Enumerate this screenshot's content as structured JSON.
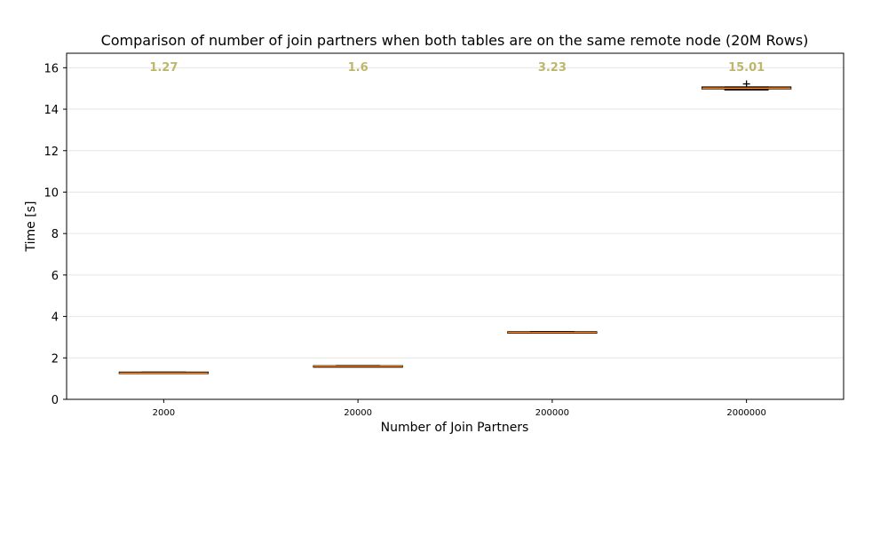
{
  "chart_data": {
    "type": "box",
    "title": "Comparison of number of join partners when both tables are on the same remote node (20M Rows)",
    "xlabel": "Number of Join Partners",
    "ylabel": "Time [s]",
    "ylim": [
      0,
      16.7
    ],
    "yticks": [
      0,
      2,
      4,
      6,
      8,
      10,
      12,
      14,
      16
    ],
    "grid": "horizontal",
    "categories": [
      "2000",
      "20000",
      "200000",
      "2000000"
    ],
    "boxes": [
      {
        "category": "2000",
        "whisker_low": 1.25,
        "q1": 1.27,
        "median": 1.27,
        "q3": 1.31,
        "whisker_high": 1.31,
        "outliers": [],
        "label": "1.27"
      },
      {
        "category": "20000",
        "whisker_low": 1.58,
        "q1": 1.58,
        "median": 1.6,
        "q3": 1.62,
        "whisker_high": 1.63,
        "outliers": [],
        "label": "1.6"
      },
      {
        "category": "200000",
        "whisker_low": 3.2,
        "q1": 3.21,
        "median": 3.23,
        "q3": 3.26,
        "whisker_high": 3.27,
        "outliers": [],
        "label": "3.23"
      },
      {
        "category": "2000000",
        "whisker_low": 14.93,
        "q1": 14.98,
        "median": 15.01,
        "q3": 15.07,
        "whisker_high": 15.07,
        "outliers": [
          15.22
        ],
        "label": "15.01"
      }
    ],
    "colors": {
      "box_edge": "#000000",
      "median_line": "#ff7f0e",
      "annotation": "#bdb76b",
      "grid": "#e6e6e6",
      "outlier_marker": "#000000"
    }
  }
}
